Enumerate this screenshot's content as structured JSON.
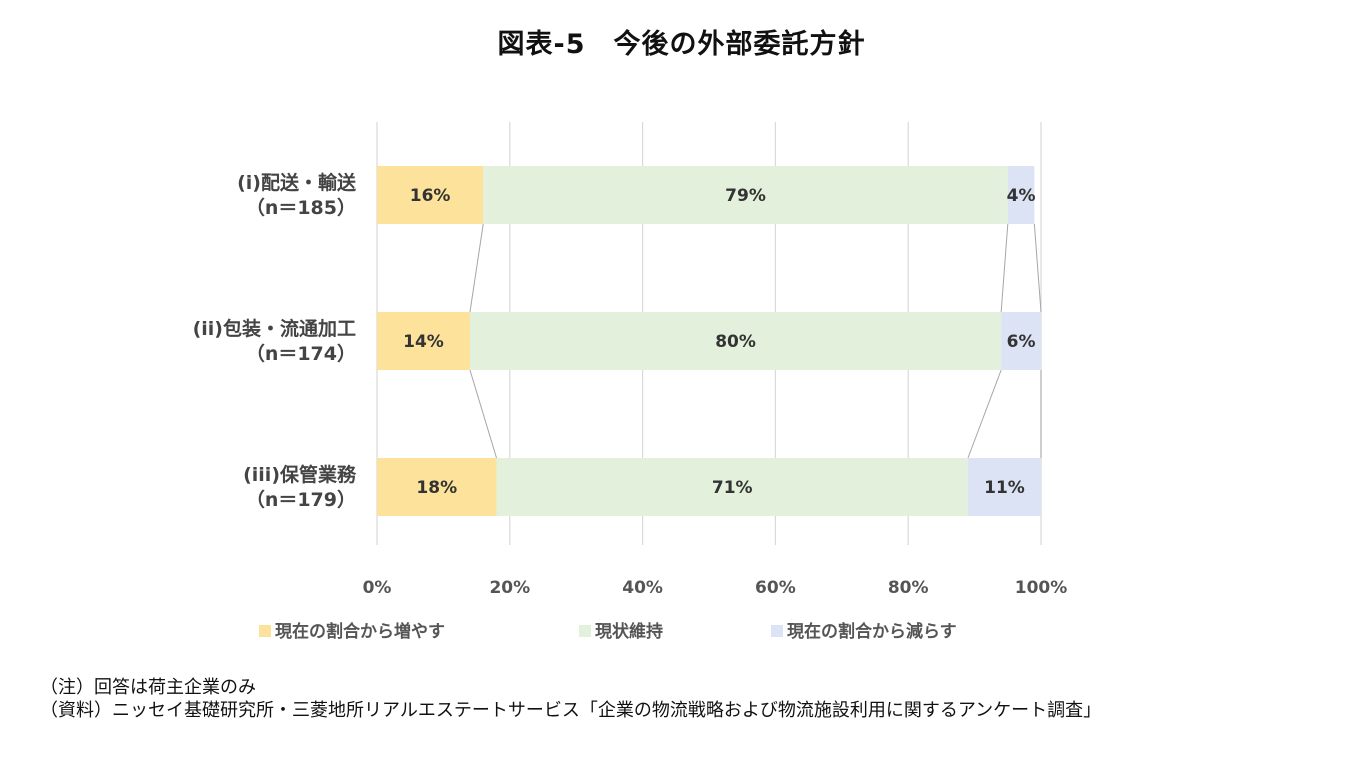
{
  "chart_data": {
    "type": "bar",
    "orientation": "horizontal",
    "stacked": true,
    "title": "図表-5　今後の外部委託方針",
    "categories": [
      [
        "(i)配送・輸送",
        "（n＝185）"
      ],
      [
        "(ii)包装・流通加工",
        "（n＝174）"
      ],
      [
        "(iii)保管業務",
        "（n＝179）"
      ]
    ],
    "series": [
      {
        "name": "現在の割合から増やす",
        "color": "#fce29a",
        "values": [
          16,
          14,
          18
        ],
        "labels": [
          "16%",
          "14%",
          "18%"
        ]
      },
      {
        "name": "現状維持",
        "color": "#e3f0db",
        "values": [
          79,
          80,
          71
        ],
        "labels": [
          "79%",
          "80%",
          "71%"
        ]
      },
      {
        "name": "現在の割合から減らす",
        "color": "#dbe3f4",
        "values": [
          4,
          6,
          11
        ],
        "labels": [
          "4%",
          "6%",
          "11%"
        ]
      }
    ],
    "xlim": [
      0,
      100
    ],
    "xticks": [
      "0%",
      "20%",
      "40%",
      "60%",
      "80%",
      "100%"
    ],
    "grid": true,
    "legend_position": "bottom",
    "series_lines": true
  },
  "notes": [
    "（注）回答は荷主企業のみ",
    "（資料）ニッセイ基礎研究所・三菱地所リアルエステートサービス「企業の物流戦略および物流施設利用に関するアンケート調査」"
  ]
}
